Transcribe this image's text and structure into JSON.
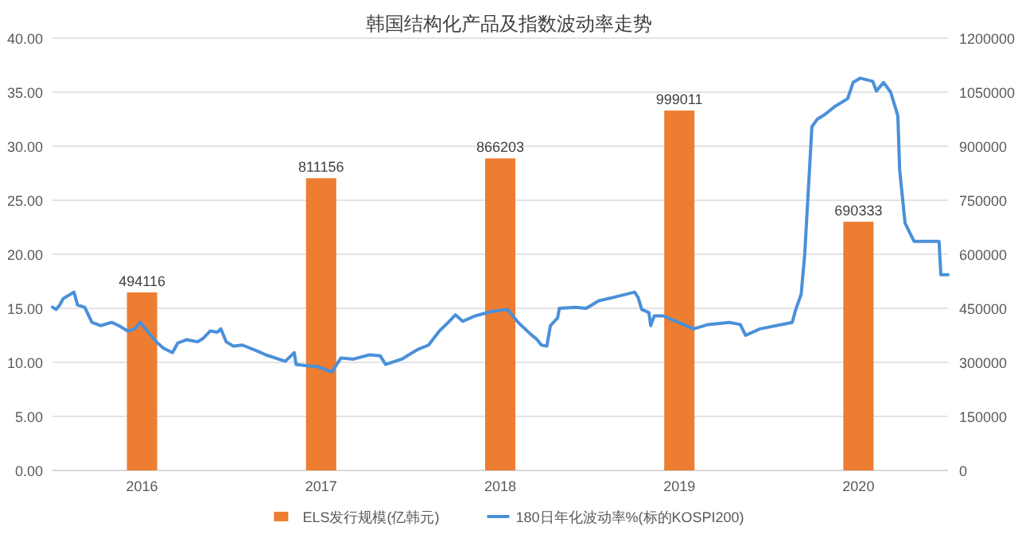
{
  "chart_data": {
    "type": "bar",
    "title": "韩国结构化产品及指数波动率走势",
    "xlim": [
      2015.5,
      2020.5
    ],
    "xticks": [
      2016,
      2017,
      2018,
      2019,
      2020
    ],
    "series": [
      {
        "name": "ELS发行规模(亿韩元)",
        "axis": "y2",
        "color": "#ed7d31",
        "x": [
          2016,
          2017,
          2018,
          2019,
          2020
        ],
        "values": [
          494116,
          811156,
          866203,
          999011,
          690333
        ],
        "value_labels": [
          "494116",
          "811156",
          "866203",
          "999011",
          "690333"
        ]
      },
      {
        "name": "180日年化波动率%(标的KOSPI200)",
        "type": "line",
        "color": "#4a90d9",
        "x": [
          2015.5,
          2015.52,
          2015.54,
          2015.56,
          2015.62,
          2015.64,
          2015.68,
          2015.72,
          2015.77,
          2015.83,
          2015.87,
          2015.92,
          2015.96,
          2015.99,
          2016.03,
          2016.08,
          2016.12,
          2016.17,
          2016.2,
          2016.25,
          2016.31,
          2016.34,
          2016.38,
          2016.42,
          2016.44,
          2016.47,
          2016.51,
          2016.56,
          2016.65,
          2016.69,
          2016.8,
          2016.85,
          2016.86,
          2016.98,
          2017.06,
          2017.11,
          2017.18,
          2017.27,
          2017.33,
          2017.36,
          2017.45,
          2017.54,
          2017.6,
          2017.66,
          2017.71,
          2017.75,
          2017.79,
          2017.86,
          2017.95,
          2018.04,
          2018.1,
          2018.17,
          2018.2,
          2018.23,
          2018.26,
          2018.28,
          2018.32,
          2018.33,
          2018.42,
          2018.48,
          2018.55,
          2018.63,
          2018.75,
          2018.77,
          2018.79,
          2018.83,
          2018.84,
          2018.86,
          2018.91,
          2019.08,
          2019.16,
          2019.28,
          2019.34,
          2019.37,
          2019.45,
          2019.63,
          2019.65,
          2019.68,
          2019.7,
          2019.74,
          2019.77,
          2019.81,
          2019.87,
          2019.94,
          2019.97,
          2020.01,
          2020.08,
          2020.1,
          2020.14,
          2020.18,
          2020.22,
          2020.23,
          2020.26,
          2020.31,
          2020.37,
          2020.45,
          2020.46,
          2020.5
        ],
        "values": [
          15.1,
          14.9,
          15.3,
          15.9,
          16.5,
          15.3,
          15.1,
          13.7,
          13.4,
          13.7,
          13.4,
          12.9,
          13.1,
          13.7,
          12.9,
          11.9,
          11.3,
          10.9,
          11.8,
          12.1,
          11.9,
          12.2,
          12.9,
          12.8,
          13.1,
          11.9,
          11.5,
          11.6,
          11.0,
          10.7,
          10.1,
          10.9,
          9.8,
          9.6,
          9.1,
          10.4,
          10.3,
          10.7,
          10.6,
          9.8,
          10.3,
          11.2,
          11.6,
          12.9,
          13.7,
          14.4,
          13.8,
          14.3,
          14.7,
          14.9,
          13.7,
          12.6,
          12.2,
          11.6,
          11.5,
          13.4,
          14.1,
          15.0,
          15.1,
          15.0,
          15.7,
          16.0,
          16.5,
          16.0,
          14.9,
          14.6,
          13.4,
          14.3,
          14.3,
          13.1,
          13.5,
          13.7,
          13.5,
          12.5,
          13.1,
          13.7,
          14.9,
          16.3,
          20.0,
          31.8,
          32.5,
          32.9,
          33.7,
          34.4,
          35.9,
          36.3,
          36.0,
          35.1,
          35.9,
          35.0,
          32.8,
          27.8,
          22.9,
          21.2,
          21.2,
          21.2,
          18.1,
          18.1
        ]
      }
    ],
    "ylim": [
      0,
      40
    ],
    "yticks": [
      {
        "value": 0,
        "label": "0.00"
      },
      {
        "value": 5,
        "label": "5.00"
      },
      {
        "value": 10,
        "label": "10.00"
      },
      {
        "value": 15,
        "label": "15.00"
      },
      {
        "value": 20,
        "label": "20.00"
      },
      {
        "value": 25,
        "label": "25.00"
      },
      {
        "value": 30,
        "label": "30.00"
      },
      {
        "value": 35,
        "label": "35.00"
      },
      {
        "value": 40,
        "label": "40.00"
      }
    ],
    "y2lim": [
      0,
      1200000
    ],
    "y2ticks": [
      0,
      150000,
      300000,
      450000,
      600000,
      750000,
      900000,
      1050000,
      1200000
    ],
    "grid": "y",
    "legend": "bottom"
  }
}
